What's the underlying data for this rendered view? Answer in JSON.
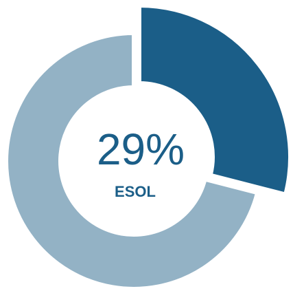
{
  "chart_data": {
    "type": "donut",
    "categories": [
      "ESOL",
      null
    ],
    "values": [
      29,
      71
    ],
    "value_labels": [
      "29%",
      null
    ],
    "colors": [
      "#1b5e88",
      "#93b2c5"
    ],
    "explode": [
      true,
      false
    ]
  }
}
